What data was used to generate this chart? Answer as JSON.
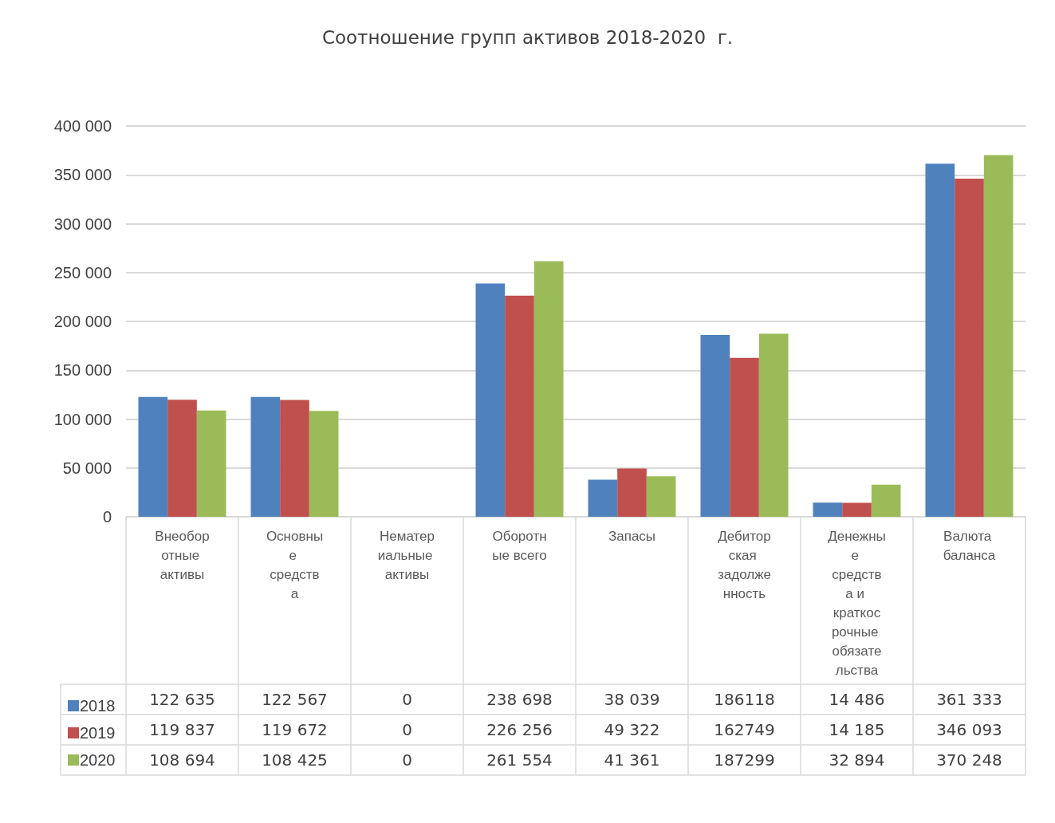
{
  "chart_data": {
    "type": "bar",
    "title": "Соотношение групп активов 2018-2020  г.",
    "categories": [
      "Внеоборотные активы",
      "Основные средства",
      "Нематериальные активы",
      "Оборотные всего",
      "Запасы",
      "Дебиторская задолженность",
      "Денежные средства и краткосрочные обязательства",
      "Валюта баланса"
    ],
    "series": [
      {
        "name": "2018",
        "color": "#4f81bd",
        "values": [
          122635,
          122567,
          0,
          238698,
          38039,
          186118,
          14486,
          361333
        ],
        "value_labels": [
          "122 635",
          "122 567",
          "0",
          "238 698",
          "38 039",
          "186118",
          "14 486",
          "361 333"
        ]
      },
      {
        "name": "2019",
        "color": "#c0504d",
        "values": [
          119837,
          119672,
          0,
          226256,
          49322,
          162749,
          14185,
          346093
        ],
        "value_labels": [
          "119 837",
          "119 672",
          "0",
          "226 256",
          "49 322",
          "162749",
          "14 185",
          "346 093"
        ]
      },
      {
        "name": "2020",
        "color": "#9bbb59",
        "values": [
          108694,
          108425,
          0,
          261554,
          41361,
          187299,
          32894,
          370248
        ],
        "value_labels": [
          "108 694",
          "108 425",
          "0",
          "261 554",
          "41 361",
          "187299",
          "32 894",
          "370 248"
        ]
      }
    ],
    "ylim": [
      0,
      400000
    ],
    "yticks": [
      {
        "value": 0,
        "label": "0"
      },
      {
        "value": 50000,
        "label": "50 000"
      },
      {
        "value": 100000,
        "label": "100 000"
      },
      {
        "value": 150000,
        "label": "150 000"
      },
      {
        "value": 200000,
        "label": "200 000"
      },
      {
        "value": 250000,
        "label": "250 000"
      },
      {
        "value": 300000,
        "label": "300 000"
      },
      {
        "value": 350000,
        "label": "350 000"
      },
      {
        "value": 400000,
        "label": "400 000"
      }
    ],
    "grid": "y",
    "legend": "bottom"
  }
}
